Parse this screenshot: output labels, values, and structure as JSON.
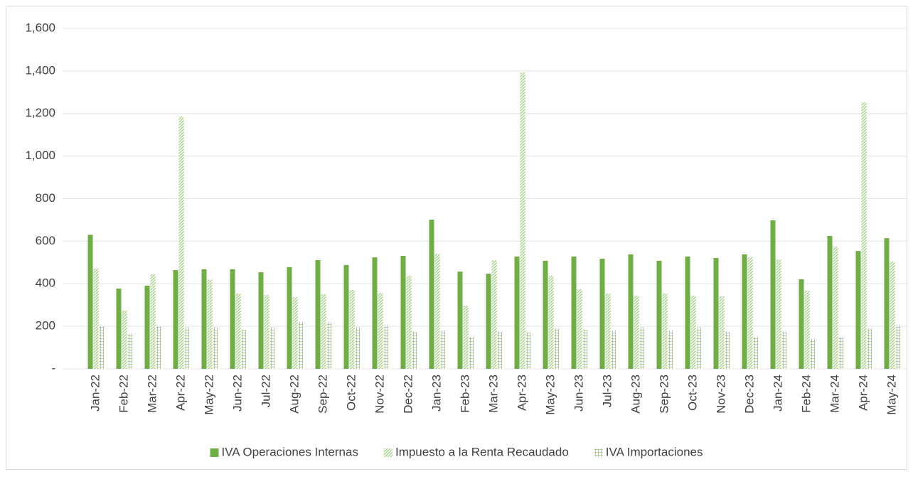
{
  "chart_data": {
    "type": "bar",
    "categories": [
      "Jan-22",
      "Feb-22",
      "Mar-22",
      "Apr-22",
      "May-22",
      "Jun-22",
      "Jul-22",
      "Aug-22",
      "Sep-22",
      "Oct-22",
      "Nov-22",
      "Dec-22",
      "Jan-23",
      "Feb-23",
      "Mar-23",
      "Apr-23",
      "May-23",
      "Jun-23",
      "Jul-23",
      "Aug-23",
      "Sep-23",
      "Oct-23",
      "Nov-23",
      "Dec-23",
      "Jan-24",
      "Feb-24",
      "Mar-24",
      "Apr-24",
      "May-24"
    ],
    "series": [
      {
        "name": "IVA Operaciones Internas",
        "color": "#70ad47",
        "pattern": "solid",
        "values": [
          630,
          377,
          391,
          464,
          468,
          468,
          454,
          478,
          511,
          488,
          524,
          531,
          701,
          457,
          447,
          528,
          508,
          528,
          518,
          538,
          508,
          528,
          521,
          538,
          698,
          421,
          625,
          554,
          614
        ]
      },
      {
        "name": "Impuesto a la Renta Recaudado",
        "color": "#a9d18e",
        "pattern": "diagonal",
        "values": [
          471,
          274,
          444,
          1186,
          418,
          354,
          347,
          337,
          351,
          371,
          357,
          438,
          541,
          297,
          511,
          1393,
          438,
          374,
          354,
          344,
          354,
          344,
          341,
          524,
          514,
          367,
          574,
          1252,
          504
        ]
      },
      {
        "name": "IVA Importaciones",
        "color": "#a9d18e",
        "pattern": "grid",
        "values": [
          200,
          165,
          200,
          195,
          195,
          185,
          195,
          220,
          220,
          195,
          205,
          175,
          180,
          150,
          175,
          170,
          190,
          185,
          180,
          195,
          180,
          195,
          175,
          150,
          175,
          140,
          150,
          190,
          205
        ]
      }
    ],
    "ylim": [
      0,
      1600
    ],
    "yticks": [
      {
        "value": 0,
        "label": "-"
      },
      {
        "value": 200,
        "label": "200"
      },
      {
        "value": 400,
        "label": "400"
      },
      {
        "value": 600,
        "label": "600"
      },
      {
        "value": 800,
        "label": "800"
      },
      {
        "value": 1000,
        "label": "1,000"
      },
      {
        "value": 1200,
        "label": "1,200"
      },
      {
        "value": 1400,
        "label": "1,400"
      },
      {
        "value": 1600,
        "label": "1,600"
      }
    ],
    "grid": true,
    "legend": "bottom"
  }
}
